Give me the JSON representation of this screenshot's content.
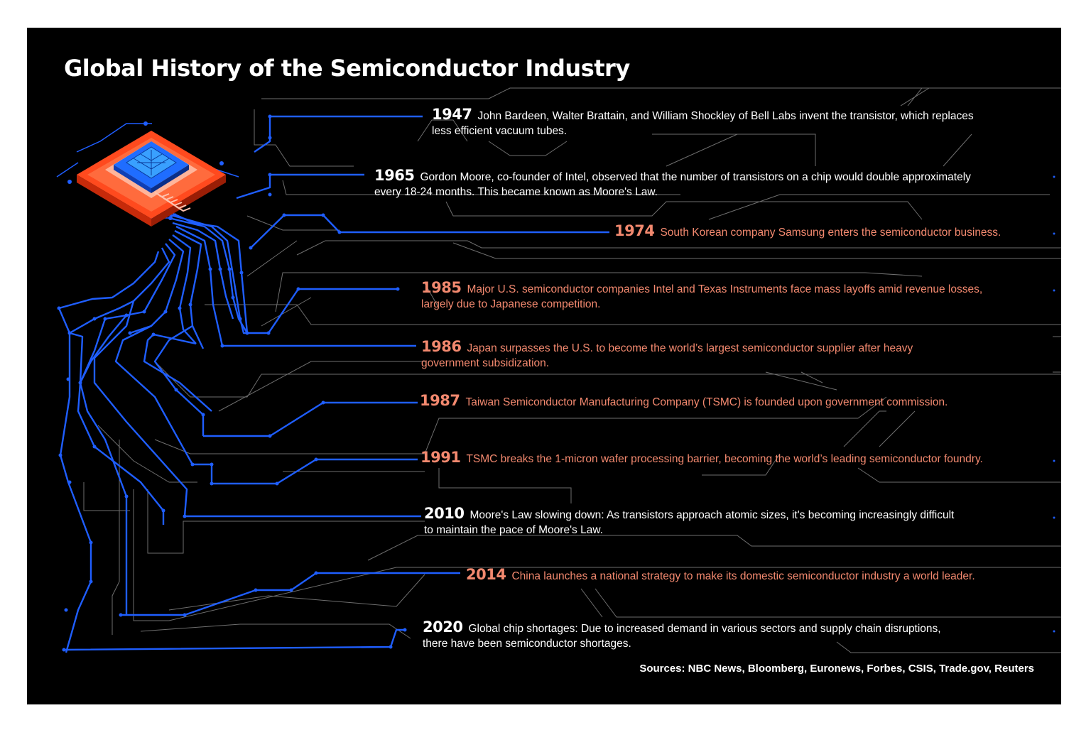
{
  "title": "Global History of the Semiconductor Industry",
  "colors": {
    "background": "#000000",
    "trace_blue": "#1f5eff",
    "trace_gray": "#6e6e6e",
    "text_white": "#ffffff",
    "text_salmon": "#f3896f",
    "chip_orange": "#ff5a2a",
    "chip_blue": "#2f8cff"
  },
  "events": [
    {
      "year": "1947",
      "text": "John Bardeen, Walter Brattain, and William Shockley of Bell Labs invent the transistor, which replaces",
      "text2": "less efficient vacuum tubes.",
      "highlight": false
    },
    {
      "year": "1965",
      "text": "Gordon Moore, co-founder of Intel, observed that the number of transistors on a chip would double approximately",
      "text2": "every 18-24 months. This became known as Moore's Law.",
      "highlight": false
    },
    {
      "year": "1974",
      "text": "South Korean company Samsung enters the semiconductor business.",
      "text2": "",
      "highlight": true
    },
    {
      "year": "1985",
      "text": "Major U.S. semiconductor companies Intel and Texas Instruments face mass layoffs amid revenue losses,",
      "text2": "largely due to Japanese competition.",
      "highlight": true
    },
    {
      "year": "1986",
      "text": "Japan surpasses the U.S. to become the world’s largest semiconductor supplier after heavy",
      "text2": "government subsidization.",
      "highlight": true
    },
    {
      "year": "1987",
      "text": "Taiwan Semiconductor Manufacturing Company (TSMC) is founded upon government commission.",
      "text2": "",
      "highlight": true
    },
    {
      "year": "1991",
      "text": "TSMC breaks the 1-micron wafer processing barrier, becoming the world’s leading semiconductor foundry.",
      "text2": "",
      "highlight": true
    },
    {
      "year": "2010",
      "text": "Moore's Law slowing down: As transistors approach atomic sizes, it's becoming increasingly difficult",
      "text2": "to maintain the pace of Moore's Law.",
      "highlight": false
    },
    {
      "year": "2014",
      "text": "China launches a national strategy to make its domestic semiconductor industry a world leader.",
      "text2": "",
      "highlight": true
    },
    {
      "year": "2020",
      "text": "Global chip shortages: Due to increased demand in various sectors and supply chain disruptions,",
      "text2": "there have been semiconductor shortages.",
      "highlight": false
    }
  ],
  "sources": "Sources: NBC News, Bloomberg, Euronews, Forbes, CSIS, Trade.gov, Reuters",
  "icons": {
    "chip": "microchip-icon"
  }
}
